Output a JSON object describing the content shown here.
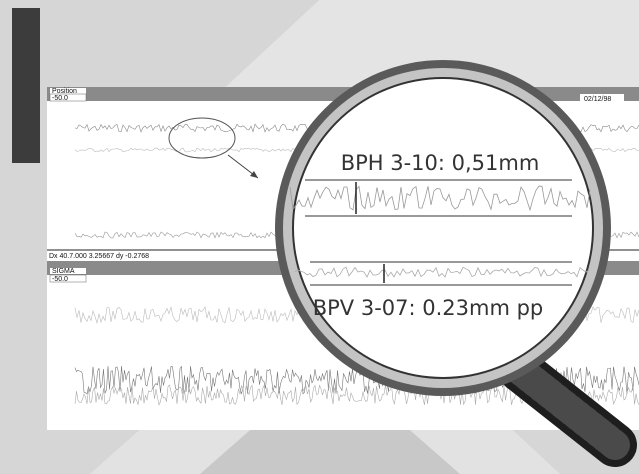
{
  "upper_panel": {
    "title": "Position",
    "scale": "-50.0",
    "date": "02/12/98",
    "cursor_readout": "Dx 40.7.000 3.25667 dy -0.2768"
  },
  "lower_panel": {
    "title": "SIGMA",
    "scale": "-50.0"
  },
  "magnifier": {
    "horizontal_label": "BPH 3-10: 0,51mm",
    "vertical_label": "BPV 3-07: 0.23mm pp"
  }
}
